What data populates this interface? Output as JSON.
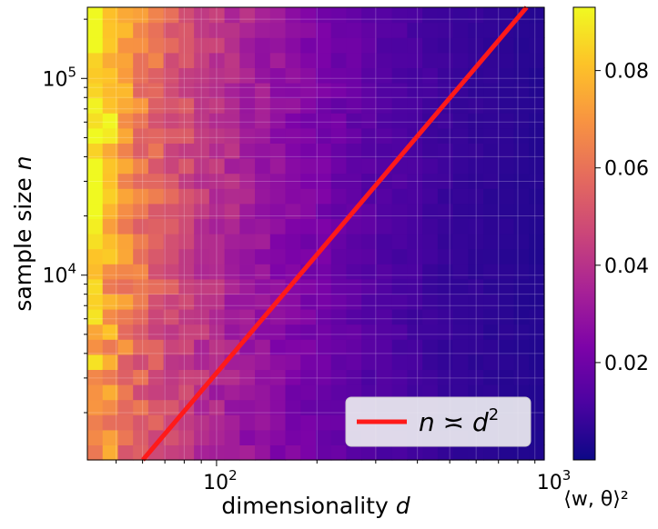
{
  "chart_data": {
    "type": "heatmap",
    "title": "",
    "xlabel": "dimensionality",
    "xlabel_var": "d",
    "ylabel": "sample size",
    "ylabel_var": "n",
    "x_scale": "log",
    "y_scale": "log",
    "xlim": [
      41,
      960
    ],
    "ylim": [
      1150,
      230000
    ],
    "grid": true,
    "x_ticks": [
      {
        "value": 100,
        "base": "10",
        "exp": "2"
      },
      {
        "value": 1000,
        "base": "10",
        "exp": "3"
      }
    ],
    "y_ticks": [
      {
        "value": 10000,
        "base": "10",
        "exp": "4"
      },
      {
        "value": 100000,
        "base": "10",
        "exp": "5"
      }
    ],
    "grid_cells": {
      "n_cols": 30,
      "n_rows": 30
    },
    "colormap": "plasma",
    "colorbar": {
      "label": "⟨w, θ⟩²",
      "min": 0.0,
      "max": 0.093,
      "ticks": [
        "0.02",
        "0.04",
        "0.06",
        "0.08"
      ]
    },
    "series": [
      {
        "name": "n ≍ d²",
        "legend_label": "n ≍ d",
        "legend_sup": "2",
        "type": "line",
        "color": "#ff1a1a",
        "relation": "n = c·d²",
        "c": 0.318,
        "x": [
          41,
          960
        ]
      }
    ],
    "legend_location": "lower-right",
    "surface_model": {
      "description": "value decays with dimensionality d; slight increase with n",
      "points_d": [
        41,
        45,
        50,
        60,
        75,
        100,
        140,
        200,
        300,
        500,
        960
      ],
      "points_value": [
        0.085,
        0.082,
        0.072,
        0.06,
        0.05,
        0.04,
        0.03,
        0.022,
        0.014,
        0.008,
        0.004
      ]
    }
  }
}
